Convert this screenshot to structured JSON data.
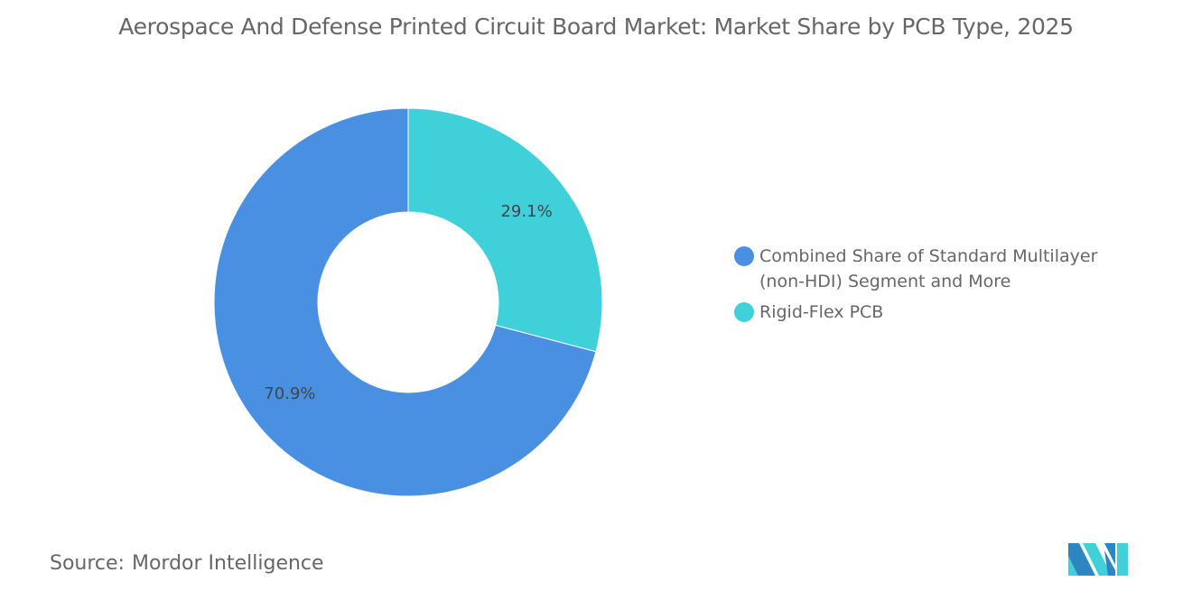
{
  "chart_data": {
    "type": "pie",
    "variant": "donut",
    "title": "Aerospace And Defense Printed Circuit Board Market: Market Share by PCB Type, 2025",
    "categories": [
      "Rigid-Flex PCB",
      "Combined Share of Standard Multilayer (non-HDI) Segment and More"
    ],
    "values": [
      29.1,
      70.9
    ],
    "labels": [
      "29.1%",
      "70.9%"
    ],
    "colors": [
      "#40D0DA",
      "#4A90E2"
    ],
    "legend": [
      "Combined Share of Standard Multilayer (non-HDI) Segment and More",
      "Rigid-Flex PCB"
    ],
    "legend_colors": [
      "#4A90E2",
      "#40D0DA"
    ],
    "legend_position": "right"
  },
  "source": {
    "label": "Source:",
    "value": "Mordor Intelligence"
  }
}
